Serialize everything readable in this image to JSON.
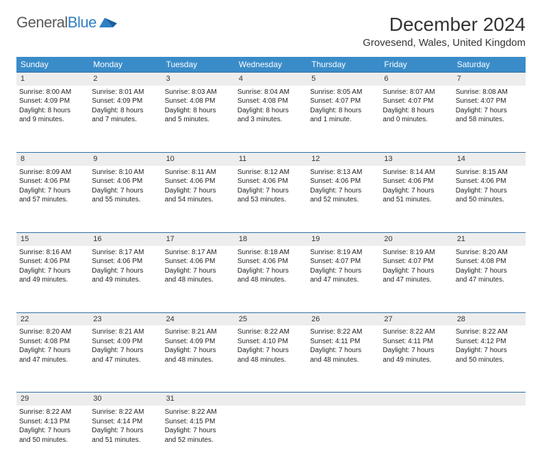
{
  "brand": {
    "part1": "General",
    "part2": "Blue"
  },
  "title": "December 2024",
  "location": "Grovesend, Wales, United Kingdom",
  "colors": {
    "header_bg": "#3a8cc9",
    "header_text": "#ffffff",
    "daynum_bg": "#ededed",
    "border": "#2d6fa5",
    "brand_gray": "#5a5a5a",
    "brand_blue": "#2f7fc3"
  },
  "weekdays": [
    "Sunday",
    "Monday",
    "Tuesday",
    "Wednesday",
    "Thursday",
    "Friday",
    "Saturday"
  ],
  "weeks": [
    [
      {
        "n": "1",
        "sr": "Sunrise: 8:00 AM",
        "ss": "Sunset: 4:09 PM",
        "d1": "Daylight: 8 hours",
        "d2": "and 9 minutes."
      },
      {
        "n": "2",
        "sr": "Sunrise: 8:01 AM",
        "ss": "Sunset: 4:09 PM",
        "d1": "Daylight: 8 hours",
        "d2": "and 7 minutes."
      },
      {
        "n": "3",
        "sr": "Sunrise: 8:03 AM",
        "ss": "Sunset: 4:08 PM",
        "d1": "Daylight: 8 hours",
        "d2": "and 5 minutes."
      },
      {
        "n": "4",
        "sr": "Sunrise: 8:04 AM",
        "ss": "Sunset: 4:08 PM",
        "d1": "Daylight: 8 hours",
        "d2": "and 3 minutes."
      },
      {
        "n": "5",
        "sr": "Sunrise: 8:05 AM",
        "ss": "Sunset: 4:07 PM",
        "d1": "Daylight: 8 hours",
        "d2": "and 1 minute."
      },
      {
        "n": "6",
        "sr": "Sunrise: 8:07 AM",
        "ss": "Sunset: 4:07 PM",
        "d1": "Daylight: 8 hours",
        "d2": "and 0 minutes."
      },
      {
        "n": "7",
        "sr": "Sunrise: 8:08 AM",
        "ss": "Sunset: 4:07 PM",
        "d1": "Daylight: 7 hours",
        "d2": "and 58 minutes."
      }
    ],
    [
      {
        "n": "8",
        "sr": "Sunrise: 8:09 AM",
        "ss": "Sunset: 4:06 PM",
        "d1": "Daylight: 7 hours",
        "d2": "and 57 minutes."
      },
      {
        "n": "9",
        "sr": "Sunrise: 8:10 AM",
        "ss": "Sunset: 4:06 PM",
        "d1": "Daylight: 7 hours",
        "d2": "and 55 minutes."
      },
      {
        "n": "10",
        "sr": "Sunrise: 8:11 AM",
        "ss": "Sunset: 4:06 PM",
        "d1": "Daylight: 7 hours",
        "d2": "and 54 minutes."
      },
      {
        "n": "11",
        "sr": "Sunrise: 8:12 AM",
        "ss": "Sunset: 4:06 PM",
        "d1": "Daylight: 7 hours",
        "d2": "and 53 minutes."
      },
      {
        "n": "12",
        "sr": "Sunrise: 8:13 AM",
        "ss": "Sunset: 4:06 PM",
        "d1": "Daylight: 7 hours",
        "d2": "and 52 minutes."
      },
      {
        "n": "13",
        "sr": "Sunrise: 8:14 AM",
        "ss": "Sunset: 4:06 PM",
        "d1": "Daylight: 7 hours",
        "d2": "and 51 minutes."
      },
      {
        "n": "14",
        "sr": "Sunrise: 8:15 AM",
        "ss": "Sunset: 4:06 PM",
        "d1": "Daylight: 7 hours",
        "d2": "and 50 minutes."
      }
    ],
    [
      {
        "n": "15",
        "sr": "Sunrise: 8:16 AM",
        "ss": "Sunset: 4:06 PM",
        "d1": "Daylight: 7 hours",
        "d2": "and 49 minutes."
      },
      {
        "n": "16",
        "sr": "Sunrise: 8:17 AM",
        "ss": "Sunset: 4:06 PM",
        "d1": "Daylight: 7 hours",
        "d2": "and 49 minutes."
      },
      {
        "n": "17",
        "sr": "Sunrise: 8:17 AM",
        "ss": "Sunset: 4:06 PM",
        "d1": "Daylight: 7 hours",
        "d2": "and 48 minutes."
      },
      {
        "n": "18",
        "sr": "Sunrise: 8:18 AM",
        "ss": "Sunset: 4:06 PM",
        "d1": "Daylight: 7 hours",
        "d2": "and 48 minutes."
      },
      {
        "n": "19",
        "sr": "Sunrise: 8:19 AM",
        "ss": "Sunset: 4:07 PM",
        "d1": "Daylight: 7 hours",
        "d2": "and 47 minutes."
      },
      {
        "n": "20",
        "sr": "Sunrise: 8:19 AM",
        "ss": "Sunset: 4:07 PM",
        "d1": "Daylight: 7 hours",
        "d2": "and 47 minutes."
      },
      {
        "n": "21",
        "sr": "Sunrise: 8:20 AM",
        "ss": "Sunset: 4:08 PM",
        "d1": "Daylight: 7 hours",
        "d2": "and 47 minutes."
      }
    ],
    [
      {
        "n": "22",
        "sr": "Sunrise: 8:20 AM",
        "ss": "Sunset: 4:08 PM",
        "d1": "Daylight: 7 hours",
        "d2": "and 47 minutes."
      },
      {
        "n": "23",
        "sr": "Sunrise: 8:21 AM",
        "ss": "Sunset: 4:09 PM",
        "d1": "Daylight: 7 hours",
        "d2": "and 47 minutes."
      },
      {
        "n": "24",
        "sr": "Sunrise: 8:21 AM",
        "ss": "Sunset: 4:09 PM",
        "d1": "Daylight: 7 hours",
        "d2": "and 48 minutes."
      },
      {
        "n": "25",
        "sr": "Sunrise: 8:22 AM",
        "ss": "Sunset: 4:10 PM",
        "d1": "Daylight: 7 hours",
        "d2": "and 48 minutes."
      },
      {
        "n": "26",
        "sr": "Sunrise: 8:22 AM",
        "ss": "Sunset: 4:11 PM",
        "d1": "Daylight: 7 hours",
        "d2": "and 48 minutes."
      },
      {
        "n": "27",
        "sr": "Sunrise: 8:22 AM",
        "ss": "Sunset: 4:11 PM",
        "d1": "Daylight: 7 hours",
        "d2": "and 49 minutes."
      },
      {
        "n": "28",
        "sr": "Sunrise: 8:22 AM",
        "ss": "Sunset: 4:12 PM",
        "d1": "Daylight: 7 hours",
        "d2": "and 50 minutes."
      }
    ],
    [
      {
        "n": "29",
        "sr": "Sunrise: 8:22 AM",
        "ss": "Sunset: 4:13 PM",
        "d1": "Daylight: 7 hours",
        "d2": "and 50 minutes."
      },
      {
        "n": "30",
        "sr": "Sunrise: 8:22 AM",
        "ss": "Sunset: 4:14 PM",
        "d1": "Daylight: 7 hours",
        "d2": "and 51 minutes."
      },
      {
        "n": "31",
        "sr": "Sunrise: 8:22 AM",
        "ss": "Sunset: 4:15 PM",
        "d1": "Daylight: 7 hours",
        "d2": "and 52 minutes."
      },
      null,
      null,
      null,
      null
    ]
  ]
}
